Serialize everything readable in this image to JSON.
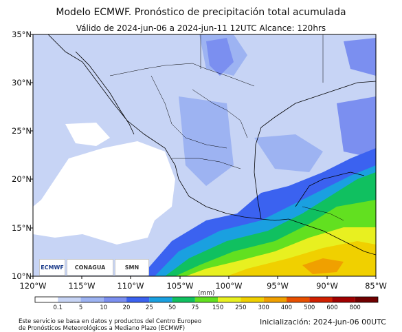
{
  "title": "Modelo ECMWF. Pronóstico de precipitación total acumulada",
  "subtitle": "Válido de 2024-jun-06 a 2024-jun-11 12UTC   Alcance: 120hrs",
  "lat_labels": [
    "35°N",
    "30°N",
    "25°N",
    "20°N",
    "15°N",
    "10°N"
  ],
  "lon_labels": [
    "120°W",
    "115°W",
    "110°W",
    "105°W",
    "100°W",
    "95°W",
    "90°W",
    "85°W"
  ],
  "units": "(mm)",
  "colorbar": {
    "labels": [
      "0.1",
      "5",
      "10",
      "20",
      "25",
      "50",
      "75",
      "150",
      "250",
      "300",
      "400",
      "500",
      "600",
      "800"
    ],
    "colors": [
      "#ffffff",
      "#c7d4f5",
      "#9db3f2",
      "#7b8ff0",
      "#3b62f0",
      "#1aa0e0",
      "#10c060",
      "#62e020",
      "#e8f020",
      "#f0d000",
      "#f0a000",
      "#e85000",
      "#d02000",
      "#a00000",
      "#700000"
    ]
  },
  "logos": {
    "ecmwf": "ECMWF",
    "conagua": "CONAGUA",
    "smn": "SMN"
  },
  "credit_line1": "Este servicio se basa en datos y productos del Centro Europeo",
  "credit_line2": "de Pronósticos Meteorológicos a Mediano Plazo (ECMWF)",
  "init": "Inicialización: 2024-jun-06 00UTC"
}
